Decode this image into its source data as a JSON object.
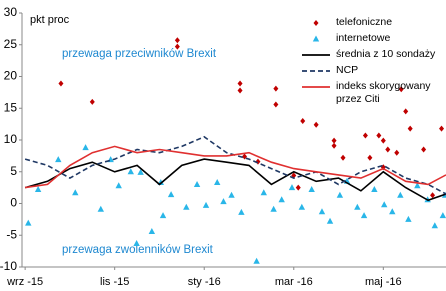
{
  "chart_data": {
    "type": "scatter",
    "y_label": "pkt proc",
    "annotations": [
      "przewaga przeciwników Brexit",
      "przewaga zwolenników Brexit"
    ],
    "xlim": [
      -0.07,
      9.4
    ],
    "xticks": [
      {
        "value": 0,
        "label": "wrz -15"
      },
      {
        "value": 2,
        "label": "lis -15"
      },
      {
        "value": 4,
        "label": "sty -16"
      },
      {
        "value": 6,
        "label": "mar -16"
      },
      {
        "value": 8,
        "label": "maj -16"
      }
    ],
    "ylim": [
      -10,
      30
    ],
    "yticks": [
      -10,
      -5,
      0,
      5,
      10,
      15,
      20,
      25,
      30
    ],
    "legend": "top-right",
    "series": [
      {
        "name": "telefoniczne",
        "mark": "diamond",
        "color": "#c00000",
        "x": [
          0.8,
          1.5,
          3.4,
          3.4,
          4.8,
          4.8,
          5.6,
          5.6,
          6.2,
          6.5,
          6.9,
          6.9,
          7.1,
          7.6,
          7.7,
          7.9,
          8.0,
          8.0,
          8.3,
          8.4,
          8.5,
          8.6,
          8.9,
          9.3,
          9.1,
          4.9,
          5.2,
          6.0,
          6.1,
          8.1
        ],
        "values": [
          18.9,
          16,
          25.7,
          24.7,
          18.9,
          17.8,
          18.1,
          15.6,
          13,
          12.4,
          9.9,
          9.1,
          7.2,
          10.7,
          7.2,
          10.7,
          9.9,
          5.7,
          8,
          18,
          14.5,
          11.8,
          8.5,
          11.8,
          1.3,
          7.4,
          6.6,
          4.4,
          2.5,
          8.5
        ]
      },
      {
        "name": "internetowe",
        "mark": "triangle",
        "color": "#29b6e8",
        "x": [
          0.07,
          0.29,
          0.74,
          1.12,
          1.35,
          1.69,
          1.91,
          2.09,
          2.36,
          2.49,
          2.58,
          2.83,
          3.03,
          3.08,
          3.26,
          3.6,
          3.84,
          4.04,
          4.29,
          4.43,
          4.61,
          4.83,
          5.17,
          5.33,
          5.55,
          5.73,
          5.96,
          6.18,
          6.4,
          6.63,
          6.81,
          7.03,
          7.19,
          7.42,
          7.57,
          7.8,
          8.02,
          8.2,
          8.38,
          8.56,
          8.76,
          8.99,
          9.15,
          9.33,
          9.38
        ],
        "values": [
          -3.1,
          2.2,
          6.9,
          1.7,
          8.8,
          -0.9,
          6.9,
          2.8,
          5,
          -6.3,
          4.9,
          -4.4,
          3.3,
          -1.9,
          1.4,
          -0.6,
          3,
          -0.3,
          3.3,
          0.3,
          1.3,
          -1.4,
          -9.1,
          1.7,
          -0.9,
          0.6,
          2.5,
          -0.6,
          2.2,
          -1.3,
          -2.8,
          1.3,
          3.5,
          -0.6,
          -1.9,
          2.2,
          -0.2,
          -1.3,
          1.3,
          -2.5,
          2.8,
          0.6,
          -3.5,
          -1.9,
          1.3
        ]
      },
      {
        "name": "średnia z 10 sondaży",
        "mark": "line",
        "color": "#000000",
        "x": [
          0,
          0.5,
          1,
          1.5,
          2,
          2.5,
          3,
          3.5,
          4,
          4.5,
          5,
          5.5,
          6,
          6.5,
          7,
          7.5,
          8,
          8.5,
          9,
          9.4
        ],
        "values": [
          2.5,
          3.5,
          5.5,
          6.5,
          5,
          6,
          3,
          6,
          7,
          6.5,
          6,
          3,
          5,
          3.5,
          4,
          2,
          5,
          2.5,
          0.5,
          1.5
        ]
      },
      {
        "name": "NCP",
        "mark": "line",
        "dash": true,
        "color": "#1f3864",
        "x": [
          0,
          0.5,
          1,
          1.5,
          2,
          2.5,
          3,
          3.5,
          4,
          4.5,
          5,
          5.5,
          6,
          6.5,
          7,
          7.5,
          8,
          8.5,
          9,
          9.4
        ],
        "values": [
          7,
          6,
          4,
          6,
          7,
          8.5,
          8,
          9,
          10.5,
          8,
          7,
          5.5,
          4,
          5,
          3,
          5,
          6,
          4,
          3,
          1.5
        ]
      },
      {
        "name": "indeks skorygowany przez Citi",
        "mark": "line",
        "color": "#e03030",
        "x": [
          0,
          0.5,
          1,
          1.5,
          2,
          2.5,
          3,
          3.5,
          4,
          4.5,
          5,
          5.5,
          6,
          6.5,
          7,
          7.5,
          8,
          8.5,
          9,
          9.4
        ],
        "values": [
          2.5,
          3,
          6,
          8,
          9,
          8,
          8.5,
          8,
          7.5,
          7.5,
          8,
          6.5,
          5.5,
          5,
          4.5,
          4,
          5.5,
          3.5,
          3,
          4.5
        ]
      }
    ]
  }
}
